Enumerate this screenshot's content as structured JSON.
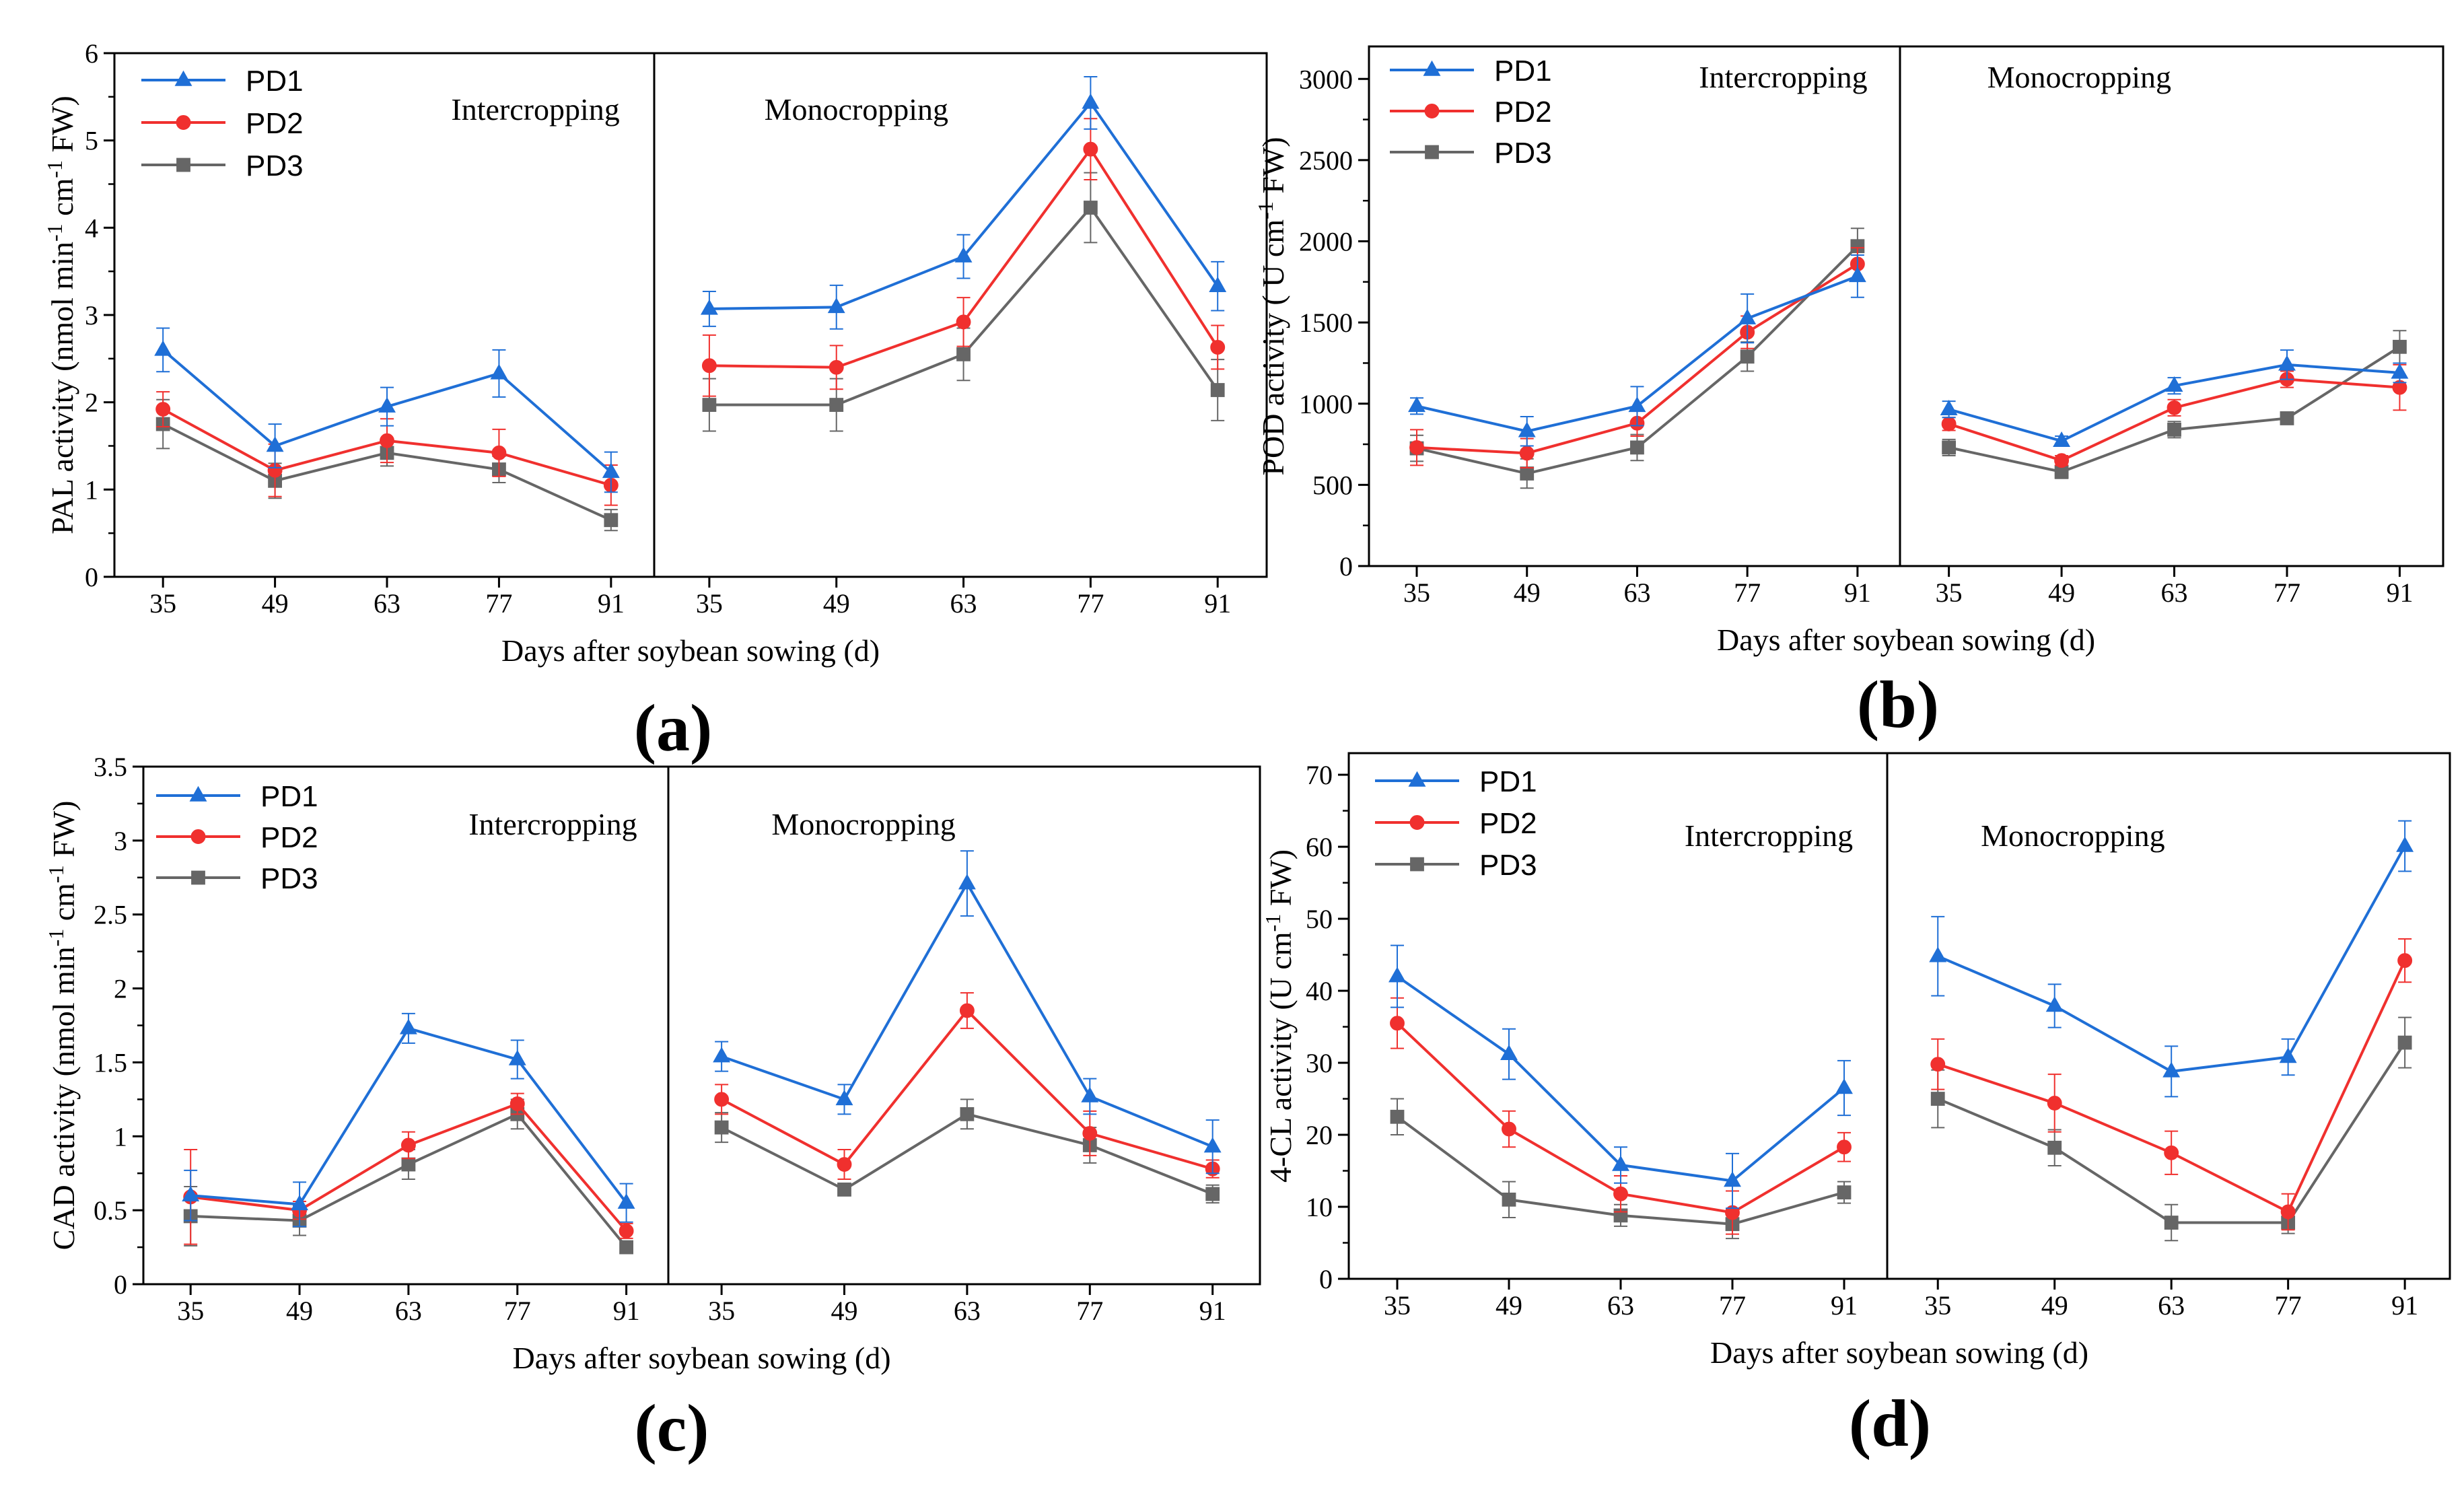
{
  "chart_data": [
    {
      "id": "a",
      "type": "line",
      "panel_label": "(a)",
      "ylabel_parts": [
        "PAL activity (nmol min",
        "-1",
        " cm",
        "-1",
        " FW)"
      ],
      "xlabel": "Days after soybean sowing (d)",
      "ylim": [
        0,
        6
      ],
      "yticks": [
        "0",
        "1",
        "2",
        "3",
        "4",
        "5",
        "6"
      ],
      "yvalues": [
        0,
        1,
        2,
        3,
        4,
        5,
        6
      ],
      "minor_step": 0.5,
      "legend_position": "top-left",
      "groups": [
        {
          "label": "Intercropping",
          "categories": [
            "35",
            "49",
            "63",
            "77",
            "91"
          ],
          "series": [
            {
              "name": "PD1",
              "values": [
                2.6,
                1.5,
                1.95,
                2.33,
                1.2
              ],
              "errors": [
                0.25,
                0.25,
                0.22,
                0.27,
                0.23
              ]
            },
            {
              "name": "PD2",
              "values": [
                1.92,
                1.22,
                1.56,
                1.42,
                1.05
              ],
              "errors": [
                0.2,
                0.3,
                0.25,
                0.27,
                0.23
              ]
            },
            {
              "name": "PD3",
              "values": [
                1.75,
                1.1,
                1.42,
                1.23,
                0.65
              ],
              "errors": [
                0.28,
                0.2,
                0.15,
                0.15,
                0.12
              ]
            }
          ]
        },
        {
          "label": "Monocropping",
          "categories": [
            "35",
            "49",
            "63",
            "77",
            "91"
          ],
          "series": [
            {
              "name": "PD1",
              "values": [
                3.07,
                3.09,
                3.67,
                5.43,
                3.33
              ],
              "errors": [
                0.2,
                0.25,
                0.25,
                0.3,
                0.28
              ]
            },
            {
              "name": "PD2",
              "values": [
                2.42,
                2.4,
                2.92,
                4.9,
                2.63
              ],
              "errors": [
                0.35,
                0.25,
                0.28,
                0.35,
                0.25
              ]
            },
            {
              "name": "PD3",
              "values": [
                1.97,
                1.97,
                2.55,
                4.23,
                2.14
              ],
              "errors": [
                0.3,
                0.3,
                0.3,
                0.4,
                0.35
              ]
            }
          ]
        }
      ]
    },
    {
      "id": "b",
      "type": "line",
      "panel_label": "(b)",
      "ylabel_parts": [
        "POD activity ( U cm",
        "-1",
        " FW)"
      ],
      "xlabel": "Days after soybean sowing (d)",
      "ylim": [
        0,
        3200
      ],
      "yticks": [
        "0",
        "500",
        "1000",
        "1500",
        "2000",
        "2500",
        "3000"
      ],
      "yvalues": [
        0,
        500,
        1000,
        1500,
        2000,
        2500,
        3000
      ],
      "minor_step": 250,
      "legend_position": "top-left",
      "groups": [
        {
          "label": "Intercropping",
          "categories": [
            "35",
            "49",
            "63",
            "77",
            "91"
          ],
          "series": [
            {
              "name": "PD1",
              "values": [
                985,
                830,
                985,
                1525,
                1785
              ],
              "errors": [
                50,
                90,
                120,
                150,
                130
              ]
            },
            {
              "name": "PD2",
              "values": [
                730,
                695,
                880,
                1440,
                1860
              ],
              "errors": [
                110,
                90,
                80,
                100,
                100
              ]
            },
            {
              "name": "PD3",
              "values": [
                725,
                570,
                730,
                1290,
                1970
              ],
              "errors": [
                80,
                90,
                80,
                90,
                110
              ]
            }
          ]
        },
        {
          "label": "Monocropping",
          "categories": [
            "35",
            "49",
            "63",
            "77",
            "91"
          ],
          "series": [
            {
              "name": "PD1",
              "values": [
                965,
                770,
                1110,
                1240,
                1190
              ],
              "errors": [
                50,
                30,
                50,
                90,
                60
              ]
            },
            {
              "name": "PD2",
              "values": [
                875,
                650,
                975,
                1150,
                1100
              ],
              "errors": [
                40,
                30,
                50,
                50,
                140
              ]
            },
            {
              "name": "PD3",
              "values": [
                730,
                580,
                840,
                910,
                1350
              ],
              "errors": [
                50,
                40,
                50,
                30,
                100
              ]
            }
          ]
        }
      ]
    },
    {
      "id": "c",
      "type": "line",
      "panel_label": "(c)",
      "ylabel_parts": [
        "CAD activity (nmol min",
        "-1",
        " cm",
        "-1",
        " FW)"
      ],
      "xlabel": "Days after soybean sowing (d)",
      "ylim": [
        0,
        3.5
      ],
      "yticks": [
        "0",
        "0.5",
        "1",
        "1.5",
        "2",
        "2.5",
        "3",
        "3.5"
      ],
      "yvalues": [
        0,
        0.5,
        1,
        1.5,
        2,
        2.5,
        3,
        3.5
      ],
      "minor_step": 0.25,
      "legend_position": "top-left",
      "groups": [
        {
          "label": "Intercropping",
          "categories": [
            "35",
            "49",
            "63",
            "77",
            "91"
          ],
          "series": [
            {
              "name": "PD1",
              "values": [
                0.6,
                0.54,
                1.73,
                1.52,
                0.55
              ],
              "errors": [
                0.17,
                0.15,
                0.1,
                0.13,
                0.13
              ]
            },
            {
              "name": "PD2",
              "values": [
                0.59,
                0.5,
                0.94,
                1.22,
                0.36
              ],
              "errors": [
                0.32,
                0.06,
                0.09,
                0.07,
                0.05
              ]
            },
            {
              "name": "PD3",
              "values": [
                0.46,
                0.43,
                0.81,
                1.15,
                0.25
              ],
              "errors": [
                0.2,
                0.1,
                0.1,
                0.1,
                0.03
              ]
            }
          ]
        },
        {
          "label": "Monocropping",
          "categories": [
            "35",
            "49",
            "63",
            "77",
            "91"
          ],
          "series": [
            {
              "name": "PD1",
              "values": [
                1.54,
                1.25,
                2.71,
                1.27,
                0.93
              ],
              "errors": [
                0.1,
                0.1,
                0.22,
                0.12,
                0.18
              ]
            },
            {
              "name": "PD2",
              "values": [
                1.25,
                0.81,
                1.85,
                1.02,
                0.78
              ],
              "errors": [
                0.1,
                0.1,
                0.12,
                0.15,
                0.06
              ]
            },
            {
              "name": "PD3",
              "values": [
                1.06,
                0.64,
                1.15,
                0.94,
                0.61
              ],
              "errors": [
                0.1,
                0.03,
                0.1,
                0.12,
                0.06
              ]
            }
          ]
        }
      ]
    },
    {
      "id": "d",
      "type": "line",
      "panel_label": "(d)",
      "ylabel_parts": [
        "4-CL activity (U cm",
        "-1",
        " FW)"
      ],
      "xlabel": "Days after soybean sowing (d)",
      "ylim": [
        0,
        73
      ],
      "yticks": [
        "0",
        "10",
        "20",
        "30",
        "40",
        "50",
        "60",
        "70"
      ],
      "yvalues": [
        0,
        10,
        20,
        30,
        40,
        50,
        60,
        70
      ],
      "minor_step": 5,
      "legend_position": "top-left",
      "groups": [
        {
          "label": "Intercropping",
          "categories": [
            "35",
            "49",
            "63",
            "77",
            "91"
          ],
          "series": [
            {
              "name": "PD1",
              "values": [
                42,
                31.2,
                15.8,
                13.6,
                26.5
              ],
              "errors": [
                4.3,
                3.5,
                2.5,
                3.8,
                3.8
              ]
            },
            {
              "name": "PD2",
              "values": [
                35.5,
                20.8,
                11.8,
                9.2,
                18.3
              ],
              "errors": [
                3.5,
                2.5,
                2.5,
                3.0,
                2.0
              ]
            },
            {
              "name": "PD3",
              "values": [
                22.5,
                11,
                8.8,
                7.6,
                12
              ],
              "errors": [
                2.5,
                2.5,
                1.5,
                2.0,
                1.5
              ]
            }
          ]
        },
        {
          "label": "Monocropping",
          "categories": [
            "35",
            "49",
            "63",
            "77",
            "91"
          ],
          "series": [
            {
              "name": "PD1",
              "values": [
                44.8,
                37.9,
                28.8,
                30.8,
                60.1
              ],
              "errors": [
                5.5,
                3.0,
                3.5,
                2.5,
                3.5
              ]
            },
            {
              "name": "PD2",
              "values": [
                29.8,
                24.4,
                17.5,
                9.3,
                44.2
              ],
              "errors": [
                3.5,
                4.0,
                3.0,
                2.5,
                3.0
              ]
            },
            {
              "name": "PD3",
              "values": [
                25,
                18.2,
                7.8,
                7.8,
                32.8
              ],
              "errors": [
                4.0,
                2.5,
                2.5,
                1.5,
                3.5
              ]
            }
          ]
        }
      ]
    }
  ],
  "legend": [
    {
      "name": "PD1",
      "color": "#1f6fd6",
      "marker": "triangle"
    },
    {
      "name": "PD2",
      "color": "#f0302e",
      "marker": "circle"
    },
    {
      "name": "PD3",
      "color": "#666666",
      "marker": "square"
    }
  ]
}
